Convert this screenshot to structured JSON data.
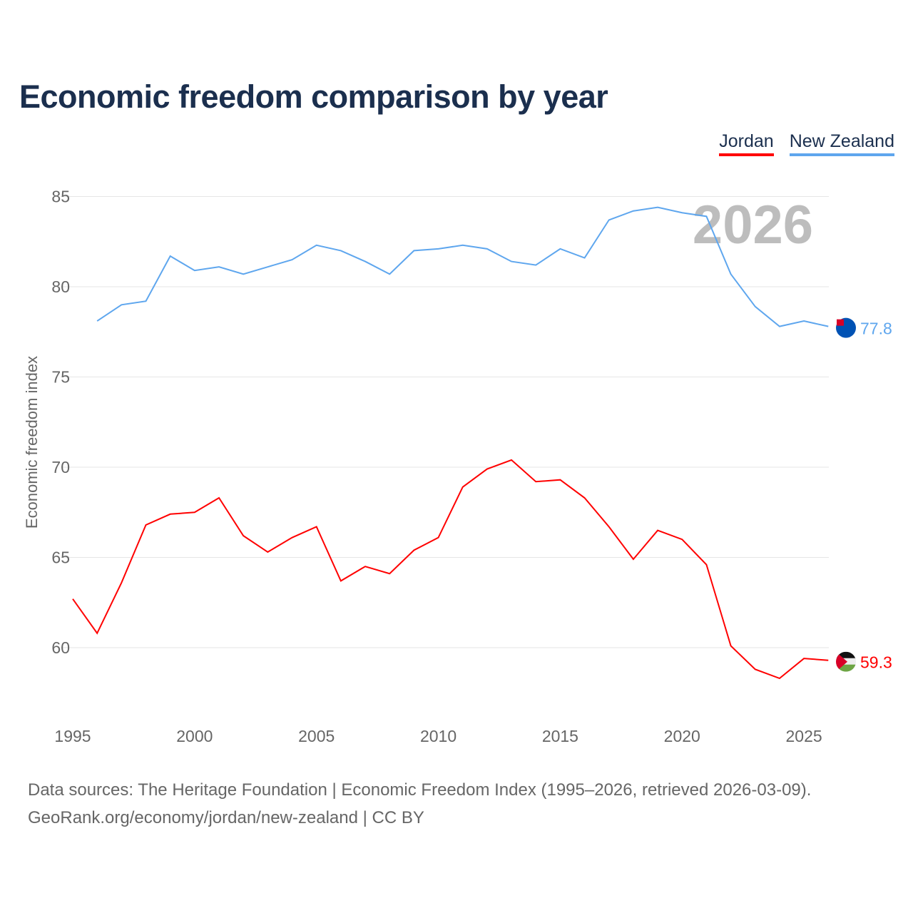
{
  "title": "Economic freedom comparison by year",
  "chart_data": {
    "type": "line",
    "title": "Economic freedom comparison by year",
    "ylabel": "Economic freedom index",
    "xlabel": "",
    "xlim": [
      1995,
      2026
    ],
    "ylim": [
      57,
      87
    ],
    "yticks": [
      60,
      65,
      70,
      75,
      80,
      85
    ],
    "xticks": [
      1995,
      2000,
      2005,
      2010,
      2015,
      2020,
      2025
    ],
    "grid": true,
    "legend_placement": "top-right",
    "year_watermark": "2026",
    "series": [
      {
        "name": "Jordan",
        "color": "#ff0000",
        "end_label": "59.3",
        "x": [
          1995,
          1996,
          1997,
          1998,
          1999,
          2000,
          2001,
          2002,
          2003,
          2004,
          2005,
          2006,
          2007,
          2008,
          2009,
          2010,
          2011,
          2012,
          2013,
          2014,
          2015,
          2016,
          2017,
          2018,
          2019,
          2020,
          2021,
          2022,
          2023,
          2024,
          2025,
          2026
        ],
        "values": [
          62.7,
          60.8,
          63.6,
          66.8,
          67.4,
          67.5,
          68.3,
          66.2,
          65.3,
          66.1,
          66.7,
          63.7,
          64.5,
          64.1,
          65.4,
          66.1,
          68.9,
          69.9,
          70.4,
          69.2,
          69.3,
          68.3,
          66.7,
          64.9,
          66.5,
          66.0,
          64.6,
          60.1,
          58.8,
          58.3,
          59.4,
          59.3
        ]
      },
      {
        "name": "New Zealand",
        "color": "#5ea6ee",
        "end_label": "77.8",
        "x": [
          1996,
          1997,
          1998,
          1999,
          2000,
          2001,
          2002,
          2003,
          2004,
          2005,
          2006,
          2007,
          2008,
          2009,
          2010,
          2011,
          2012,
          2013,
          2014,
          2015,
          2016,
          2017,
          2018,
          2019,
          2020,
          2021,
          2022,
          2023,
          2024,
          2025,
          2026
        ],
        "values": [
          78.1,
          79.0,
          79.2,
          81.7,
          80.9,
          81.1,
          80.7,
          81.1,
          81.5,
          82.3,
          82.0,
          81.4,
          80.7,
          82.0,
          82.1,
          82.3,
          82.1,
          81.4,
          81.2,
          82.1,
          81.6,
          83.7,
          84.2,
          84.4,
          84.1,
          83.9,
          80.7,
          78.9,
          77.8,
          78.1,
          77.8
        ]
      }
    ]
  },
  "source_line1": "Data sources: The Heritage Foundation | Economic Freedom Index (1995–2026, retrieved 2026-03-09).",
  "source_line2": "GeoRank.org/economy/jordan/new-zealand | CC BY"
}
